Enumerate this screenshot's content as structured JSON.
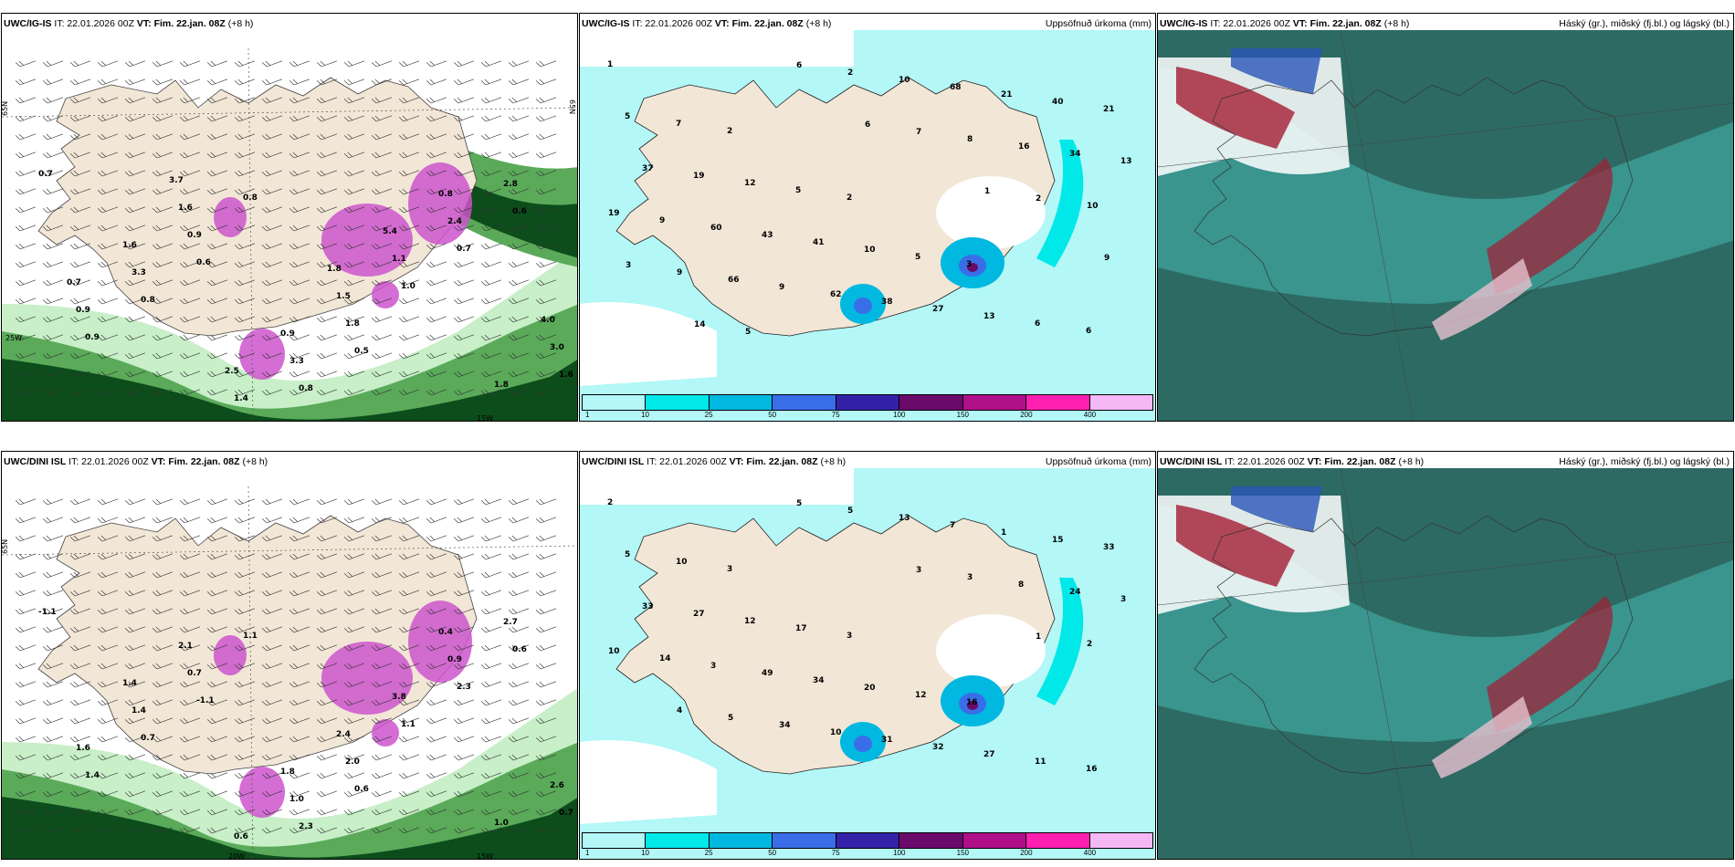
{
  "panels": [
    {
      "id": "p1",
      "model": "UWC/IG-IS",
      "it": "IT: 22.01.2026 00Z",
      "vt_label": "VT:",
      "vt": "Fim. 22.jan. 08Z",
      "lead": "(+8 h)",
      "right": "",
      "kind": "wind",
      "axis": {
        "lat_left": "65N",
        "lat_right": "65N",
        "lon_bottom1": "25W",
        "lon_bottom2": "15W"
      },
      "values": [
        "0.7",
        "0.6",
        "0.5",
        "0.6",
        "0.8",
        "0.8",
        "0.7",
        "0.9",
        "0.8",
        "1.0",
        "1.6",
        "0.9",
        "1.8",
        "2.8",
        "3.3",
        "3.3",
        "2.4",
        "0.9",
        "1.4",
        "1.1",
        "3.0",
        "1.6",
        "1.5",
        "1.8",
        "1.6",
        "0.9",
        "0.8",
        "0.7",
        "2.5",
        "5.4",
        "4.0",
        "3.7",
        "1.8"
      ]
    },
    {
      "id": "p2",
      "model": "UWC/IG-IS",
      "it": "IT: 22.01.2026 00Z",
      "vt_label": "VT:",
      "vt": "Fim. 22.jan. 08Z",
      "lead": "(+8 h)",
      "right": "Uppsöfnuð úrkoma (mm)",
      "kind": "precip",
      "values": [
        "1",
        "2",
        "2",
        "3",
        "6",
        "7",
        "5",
        "5",
        "6",
        "5",
        "12",
        "10",
        "13",
        "21",
        "19",
        "41",
        "27",
        "40",
        "37",
        "43",
        "38",
        "21",
        "13",
        "60",
        "62",
        "68",
        "34",
        "9",
        "9",
        "10",
        "16",
        "19",
        "66",
        "2",
        "8",
        "10",
        "9",
        "6",
        "7",
        "2",
        "3",
        "5",
        "6",
        "1",
        "9",
        "14"
      ],
      "colorbar": {
        "ticks": [
          "1",
          "10",
          "25",
          "50",
          "75",
          "100",
          "150",
          "200",
          "400"
        ]
      }
    },
    {
      "id": "p3",
      "model": "UWC/IG-IS",
      "it": "IT: 22.01.2026 00Z",
      "vt_label": "VT:",
      "vt": "Fim. 22.jan. 08Z",
      "lead": "(+8 h)",
      "right": "Háský (gr.), miðský (fj.bl.) og lágský (bl.)",
      "kind": "cloud"
    },
    {
      "id": "p4",
      "model": "UWC/DINI ISL",
      "it": "IT: 22.01.2026 00Z",
      "vt_label": "VT:",
      "vt": "Fim. 22.jan. 08Z",
      "lead": "(+8 h)",
      "right": "",
      "kind": "wind",
      "axis": {
        "lat_left": "65N",
        "lat_right": "",
        "lon_bottom1": "20W",
        "lon_bottom2": "15W"
      },
      "values": [
        "-1.1",
        "-1.1",
        "0.6",
        "0.6",
        "0.7",
        "2.3",
        "2.3",
        "1.4",
        "1.1",
        "1.1",
        "0.7",
        "0.7",
        "2.0",
        "2.7",
        "1.4",
        "1.0",
        "0.9",
        "1.6",
        "0.6",
        "3.8",
        "2.6",
        "2.1",
        "2.4",
        "1.0",
        "1.4",
        "1.8",
        "0.4"
      ]
    },
    {
      "id": "p5",
      "model": "UWC/DINI ISL",
      "it": "IT: 22.01.2026 00Z",
      "vt_label": "VT:",
      "vt": "Fim. 22.jan. 08Z",
      "lead": "(+8 h)",
      "right": "Uppsöfnuð úrkoma (mm)",
      "kind": "precip",
      "values": [
        "2",
        "3",
        "3",
        "16",
        "16",
        "10",
        "17",
        "12",
        "11",
        "5",
        "12",
        "20",
        "27",
        "33",
        "27",
        "34",
        "32",
        "15",
        "33",
        "49",
        "31",
        "1",
        "3",
        "3",
        "10",
        "7",
        "24",
        "14",
        "34",
        "13",
        "8",
        "10",
        "5",
        "5",
        "3",
        "2",
        "4",
        "5",
        "3",
        "1"
      ],
      "colorbar": {
        "ticks": [
          "1",
          "10",
          "25",
          "50",
          "75",
          "100",
          "150",
          "200",
          "400"
        ]
      }
    },
    {
      "id": "p6",
      "model": "UWC/DINI ISL",
      "it": "IT: 22.01.2026 00Z",
      "vt_label": "VT:",
      "vt": "Fim. 22.jan. 08Z",
      "lead": "(+8 h)",
      "right": "Háský (gr.), miðský (fj.bl.) og lágský (bl.)",
      "kind": "cloud"
    }
  ],
  "colors": {
    "land": "#f2e6d6",
    "precip_light": "#b3f7f7",
    "precip_cyan": "#00e8e8",
    "precip_mid": "#00b8e0",
    "precip_blue": "#3a6ee8",
    "precip_dark": "#3322a8",
    "precip_purple": "#6a0a6a",
    "precip_magenta": "#b00f8a",
    "precip_pink": "#ff1fb0",
    "precip_lilac": "#f5b8f5",
    "green_light": "#c8efc8",
    "green_mid": "#5aaa5a",
    "green_dark": "#0d4d1c",
    "cloud_base": "#2d6a63",
    "cloud_teal": "#3fa8a0",
    "cloud_blue": "#2855b8",
    "cloud_red": "#a41d33"
  }
}
